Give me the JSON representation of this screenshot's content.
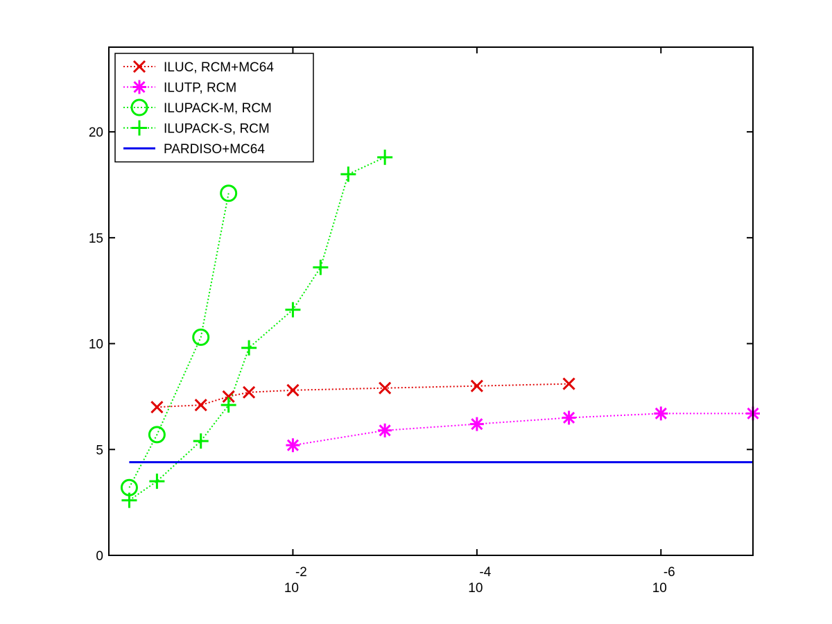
{
  "chart_data": {
    "type": "line",
    "x_scale": "log10-reversed",
    "xlim": [
      1,
      1e-07
    ],
    "ylim": [
      0,
      24
    ],
    "grid": false,
    "legend_position": "top-left",
    "x_ticks": [
      {
        "value": 0.01,
        "base": "10",
        "exponent": "-2"
      },
      {
        "value": 0.0001,
        "base": "10",
        "exponent": "-4"
      },
      {
        "value": 1e-06,
        "base": "10",
        "exponent": "-6"
      }
    ],
    "y_ticks": [
      0,
      5,
      10,
      15,
      20
    ],
    "y_tick_labels": [
      "0",
      "5",
      "10",
      "15",
      "20"
    ],
    "series": [
      {
        "name": "ILUC, RCM+MC64",
        "color": "#e00000",
        "marker": "x",
        "line_style": "dotted",
        "x": [
          0.3,
          0.1,
          0.05,
          0.03,
          0.01,
          0.001,
          0.0001,
          1e-05
        ],
        "y": [
          7.0,
          7.1,
          7.5,
          7.7,
          7.8,
          7.9,
          8.0,
          8.1
        ]
      },
      {
        "name": "ILUTP, RCM",
        "color": "#ff00ff",
        "marker": "asterisk",
        "line_style": "dotted",
        "x": [
          0.01,
          0.001,
          0.0001,
          1e-05,
          1e-06,
          1e-07
        ],
        "y": [
          5.2,
          5.9,
          6.2,
          6.5,
          6.7,
          6.7
        ]
      },
      {
        "name": "ILUPACK-M, RCM",
        "color": "#00ee00",
        "marker": "circle",
        "line_style": "dotted",
        "x": [
          0.6,
          0.3,
          0.1,
          0.05
        ],
        "y": [
          3.2,
          5.7,
          10.3,
          17.1
        ]
      },
      {
        "name": "ILUPACK-S, RCM",
        "color": "#00ee00",
        "marker": "plus",
        "line_style": "dotted",
        "x": [
          0.6,
          0.3,
          0.1,
          0.05,
          0.03,
          0.01,
          0.005,
          0.0025,
          0.001
        ],
        "y": [
          2.6,
          3.5,
          5.4,
          7.1,
          9.8,
          11.6,
          13.6,
          18.0,
          18.8
        ]
      },
      {
        "name": "PARDISO+MC64",
        "color": "#0000ee",
        "marker": "none",
        "line_style": "solid",
        "x": [
          0.6,
          1e-07
        ],
        "y": [
          4.4,
          4.4
        ]
      }
    ]
  }
}
